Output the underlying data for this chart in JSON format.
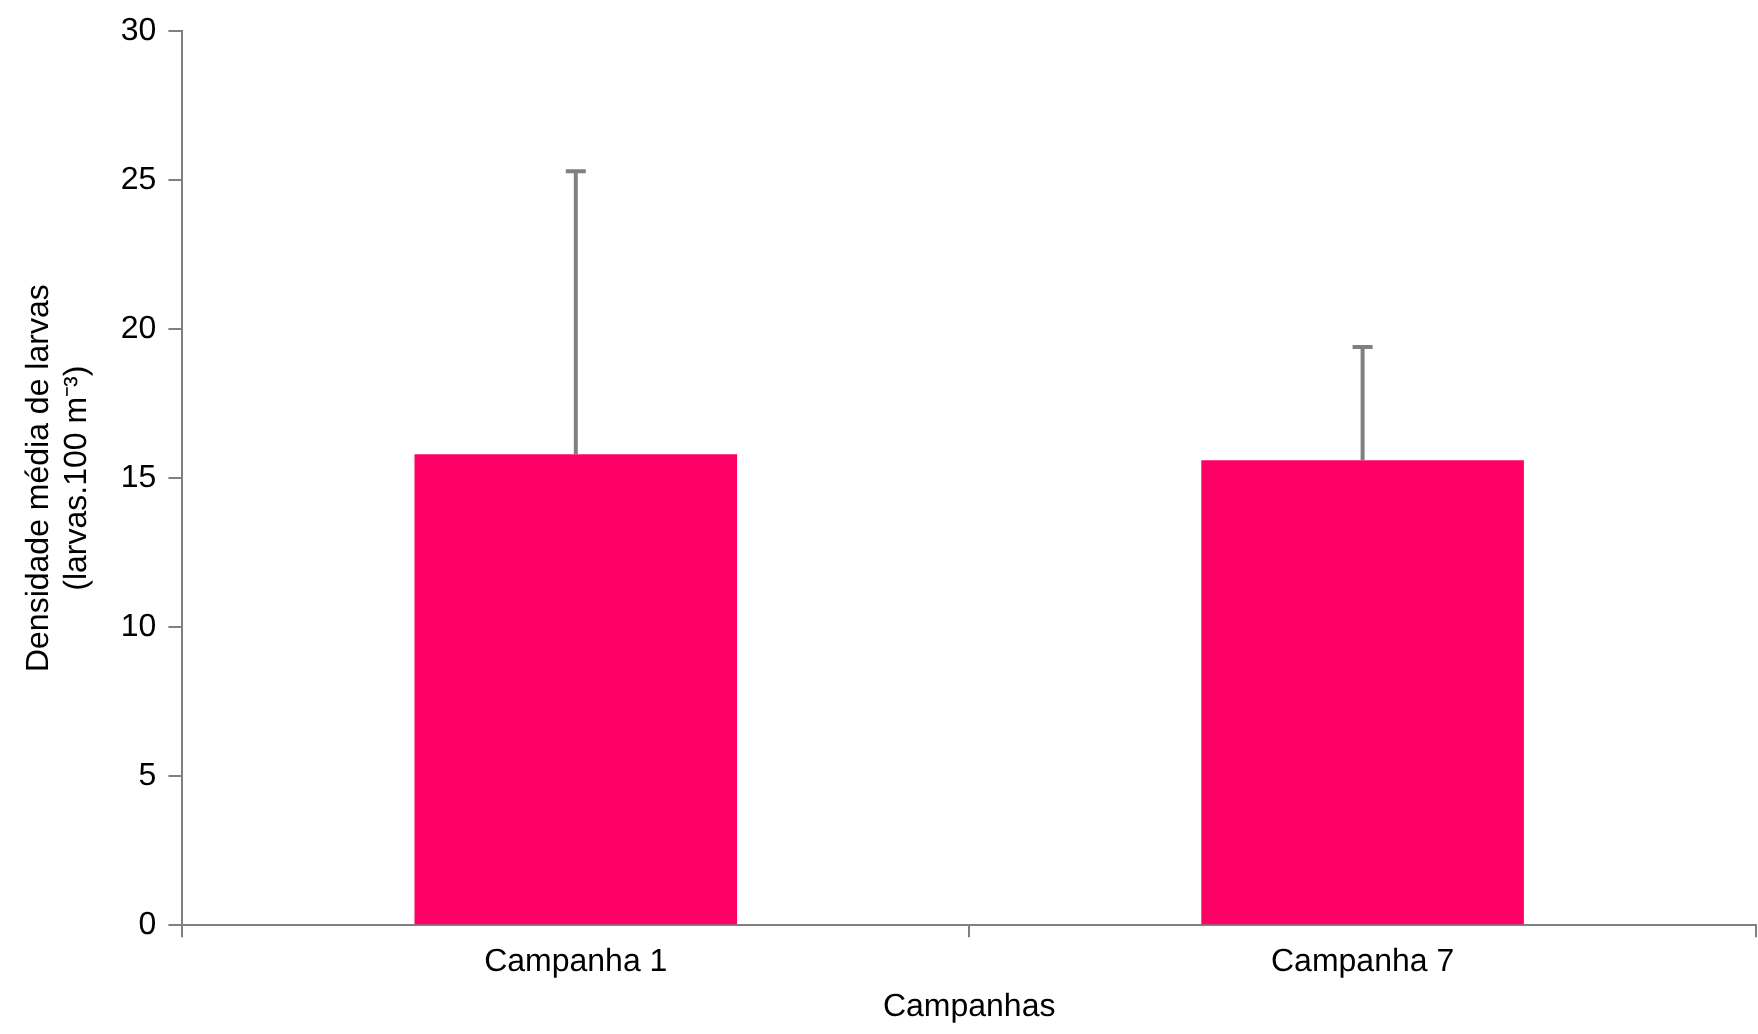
{
  "chart_data": {
    "type": "bar",
    "xlabel": "Campanhas",
    "ylabel": "Densidade média de larvas\n(larvas.100 m⁻³)",
    "categories": [
      "Campanha 1",
      "Campanha 7"
    ],
    "values": [
      15.8,
      15.6
    ],
    "color": "#ff0066",
    "errors": [
      [
        15.8,
        25.3
      ],
      [
        15.6,
        19.4
      ]
    ],
    "ylim": [
      0,
      30
    ],
    "yticks": [
      0,
      5,
      10,
      15,
      20,
      25,
      30
    ],
    "grid": false,
    "legend": false
  }
}
